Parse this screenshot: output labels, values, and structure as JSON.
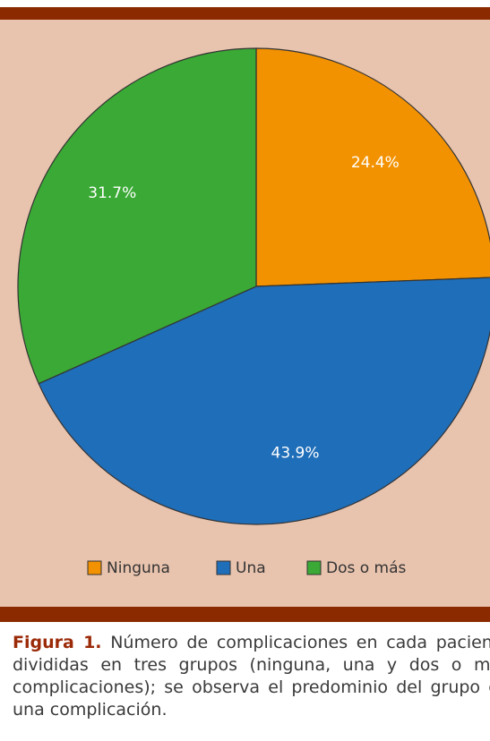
{
  "chart_data": {
    "type": "pie",
    "categories": [
      "Ninguna",
      "Una",
      "Dos o más"
    ],
    "values": [
      24.4,
      43.9,
      31.7
    ],
    "value_labels": [
      "24.4%",
      "43.9%",
      "31.7%"
    ],
    "colors": [
      "#f39200",
      "#1f6eb9",
      "#3aa935"
    ],
    "legend": "bottom"
  },
  "caption": {
    "label": "Figura 1.",
    "text": "Número de complicaciones en cada paciente divididas en tres grupos (ninguna, una y dos o más complicaciones); se observa el predominio del grupo de una complicación."
  }
}
